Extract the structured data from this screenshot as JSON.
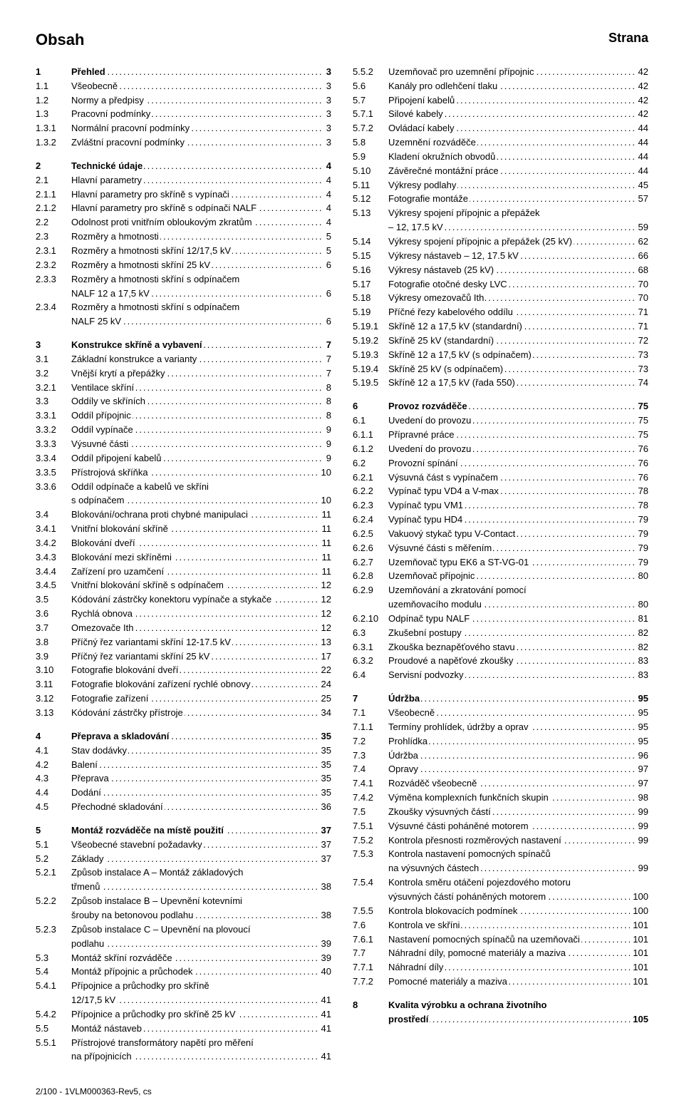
{
  "header": {
    "title": "Obsah",
    "page_label": "Strana"
  },
  "footer": "2/100 - 1VLM000363-Rev5, cs",
  "left": [
    {
      "n": "1",
      "t": "Přehled",
      "p": "3",
      "b": true
    },
    {
      "n": "1.1",
      "t": "Všeobecně",
      "p": "3"
    },
    {
      "n": "1.2",
      "t": "Normy a předpisy",
      "p": "3"
    },
    {
      "n": "1.3",
      "t": "Pracovní podmínky",
      "p": "3"
    },
    {
      "n": "1.3.1",
      "t": "Normální pracovní podmínky",
      "p": "3"
    },
    {
      "n": "1.3.2",
      "t": "Zvláštní pracovní podmínky",
      "p": "3"
    },
    {
      "gap": true
    },
    {
      "n": "2",
      "t": "Technické údaje",
      "p": "4",
      "b": true
    },
    {
      "n": "2.1",
      "t": "Hlavní parametry",
      "p": "4"
    },
    {
      "n": "2.1.1",
      "t": "Hlavní parametry pro skříně s vypínači",
      "p": "4"
    },
    {
      "n": "2.1.2",
      "t": "Hlavní parametry pro skříně s odpínači NALF",
      "p": "4"
    },
    {
      "n": "2.2",
      "t": "Odolnost proti vnitřním obloukovým zkratům",
      "p": "4"
    },
    {
      "n": "2.3",
      "t": "Rozměry a hmotnosti",
      "p": "5"
    },
    {
      "n": "2.3.1",
      "t": "Rozměry a hmotnosti skříní 12/17,5 kV",
      "p": "5"
    },
    {
      "n": "2.3.2",
      "t": "Rozměry a hmotnosti skříní 25 kV",
      "p": "6"
    },
    {
      "n": "2.3.3",
      "t": "Rozměry a hmotnosti skříní s odpínačem",
      "cont": "NALF 12 a 17,5 kV",
      "p": "6"
    },
    {
      "n": "2.3.4",
      "t": "Rozměry a hmotnosti skříní s odpínačem",
      "cont": "NALF 25 kV",
      "p": "6"
    },
    {
      "gap": true
    },
    {
      "n": "3",
      "t": "Konstrukce skříně a vybavení",
      "p": "7",
      "b": true
    },
    {
      "n": "3.1",
      "t": "Základní konstrukce a varianty",
      "p": "7"
    },
    {
      "n": "3.2",
      "t": "Vnější krytí a přepážky",
      "p": "7"
    },
    {
      "n": "3.2.1",
      "t": "Ventilace skříní",
      "p": "8"
    },
    {
      "n": "3.3",
      "t": "Oddíly ve skříních",
      "p": "8"
    },
    {
      "n": "3.3.1",
      "t": "Oddíl přípojnic",
      "p": "8"
    },
    {
      "n": "3.3.2",
      "t": "Oddíl vypínače",
      "p": "9"
    },
    {
      "n": "3.3.3",
      "t": "Výsuvné části",
      "p": "9"
    },
    {
      "n": "3.3.4",
      "t": "Oddíl připojení kabelů",
      "p": "9"
    },
    {
      "n": "3.3.5",
      "t": "Přístrojová skříňka",
      "p": "10"
    },
    {
      "n": "3.3.6",
      "t": "Oddíl odpínače a kabelů ve skříni",
      "cont": "s odpínačem",
      "p": "10"
    },
    {
      "n": "3.4",
      "t": "Blokování/ochrana proti chybné manipulaci",
      "p": "11"
    },
    {
      "n": "3.4.1",
      "t": "Vnitřní blokování skříně",
      "p": "11"
    },
    {
      "n": "3.4.2",
      "t": "Blokování dveří",
      "p": "11"
    },
    {
      "n": "3.4.3",
      "t": "Blokování mezi skříněmi",
      "p": "11"
    },
    {
      "n": "3.4.4",
      "t": "Zařízení pro uzamčení",
      "p": "11"
    },
    {
      "n": "3.4.5",
      "t": "Vnitřní blokování skříně s odpínačem",
      "p": "12"
    },
    {
      "n": "3.5",
      "t": "Kódování zástrčky konektoru vypínače a stykače",
      "p": "12"
    },
    {
      "n": "3.6",
      "t": "Rychlá obnova",
      "p": "12"
    },
    {
      "n": "3.7",
      "t": "Omezovače Ith",
      "p": "12"
    },
    {
      "n": "3.8",
      "t": "Příčný řez variantami skříní 12-17.5 kV",
      "p": "13"
    },
    {
      "n": "3.9",
      "t": "Příčný řez variantami skříní 25 kV",
      "p": "17"
    },
    {
      "n": "3.10",
      "t": "Fotografie blokování dveří",
      "p": "22"
    },
    {
      "n": "3.11",
      "t": "Fotografie blokování zařízení rychlé obnovy",
      "p": "24"
    },
    {
      "n": "3.12",
      "t": "Fotografie zařízení",
      "p": "25"
    },
    {
      "n": "3.13",
      "t": "Kódování zástrčky přístroje",
      "p": "34"
    },
    {
      "gap": true
    },
    {
      "n": "4",
      "t": "Přeprava a skladování",
      "p": "35",
      "b": true
    },
    {
      "n": "4.1",
      "t": "Stav dodávky",
      "p": "35"
    },
    {
      "n": "4.2",
      "t": "Balení",
      "p": "35"
    },
    {
      "n": "4.3",
      "t": "Přeprava",
      "p": "35"
    },
    {
      "n": "4.4",
      "t": "Dodání",
      "p": "35"
    },
    {
      "n": "4.5",
      "t": "Přechodné skladování",
      "p": "36"
    },
    {
      "gap": true
    },
    {
      "n": "5",
      "t": "Montáž rozváděče na místě použití",
      "p": "37",
      "b": true
    },
    {
      "n": "5.1",
      "t": "Všeobecné stavební požadavky",
      "p": "37"
    },
    {
      "n": "5.2",
      "t": "Základy",
      "p": "37"
    },
    {
      "n": "5.2.1",
      "t": "Způsob instalace A – Montáž základových",
      "cont": "třmenů",
      "p": "38"
    },
    {
      "n": "5.2.2",
      "t": "Způsob instalace B – Upevnění kotevními",
      "cont": "šrouby na betonovou podlahu",
      "p": "38"
    },
    {
      "n": "5.2.3",
      "t": "Způsob instalace C – Upevnění na plovoucí",
      "cont": "podlahu",
      "p": "39"
    },
    {
      "n": "5.3",
      "t": "Montáž skříní rozváděče",
      "p": "39"
    },
    {
      "n": "5.4",
      "t": "Montáž přípojnic a průchodek",
      "p": "40"
    },
    {
      "n": "5.4.1",
      "t": "Přípojnice a průchodky pro skříně",
      "cont": "12/17,5 kV",
      "p": "41"
    },
    {
      "n": "5.4.2",
      "t": "Přípojnice a průchodky pro skříně 25 kV",
      "p": "41"
    },
    {
      "n": "5.5",
      "t": "Montáž nástaveb",
      "p": "41"
    },
    {
      "n": "5.5.1",
      "t": "Přístrojové transformátory napětí pro měření",
      "cont": "na přípojnicích",
      "p": "41"
    }
  ],
  "right": [
    {
      "n": "5.5.2",
      "t": "Uzemňovač pro uzemnění přípojnic",
      "p": "42"
    },
    {
      "n": "5.6",
      "t": "Kanály pro odlehčení tlaku",
      "p": "42"
    },
    {
      "n": "5.7",
      "t": "Připojení kabelů",
      "p": "42"
    },
    {
      "n": "5.7.1",
      "t": "Silové kabely",
      "p": "42"
    },
    {
      "n": "5.7.2",
      "t": "Ovládací kabely",
      "p": "44"
    },
    {
      "n": "5.8",
      "t": "Uzemnění rozváděče",
      "p": "44"
    },
    {
      "n": "5.9",
      "t": "Kladení okružních obvodů",
      "p": "44"
    },
    {
      "n": "5.10",
      "t": "Závěrečné montážní práce",
      "p": "44"
    },
    {
      "n": "5.11",
      "t": "Výkresy podlahy",
      "p": "45"
    },
    {
      "n": "5.12",
      "t": "Fotografie montáže",
      "p": "57"
    },
    {
      "n": "5.13",
      "t": "Výkresy spojení přípojnic a přepážek",
      "cont": "– 12, 17.5 kV",
      "p": "59"
    },
    {
      "n": "5.14",
      "t": "Výkresy spojení přípojnic a přepážek (25 kV)",
      "p": "62"
    },
    {
      "n": "5.15",
      "t": "Výkresy nástaveb – 12, 17.5 kV",
      "p": "66"
    },
    {
      "n": "5.16",
      "t": "Výkresy nástaveb (25 kV)",
      "p": "68"
    },
    {
      "n": "5.17",
      "t": "Fotografie otočné desky LVC",
      "p": "70"
    },
    {
      "n": "5.18",
      "t": "Výkresy omezovačů Ith",
      "p": "70"
    },
    {
      "n": "5.19",
      "t": "Příčné řezy kabelového oddílu",
      "p": "71"
    },
    {
      "n": "5.19.1",
      "t": "Skříně 12 a 17,5 kV (standardní)",
      "p": "71"
    },
    {
      "n": "5.19.2",
      "t": "Skříně 25 kV (standardní)",
      "p": "72"
    },
    {
      "n": "5.19.3",
      "t": "Skříně 12 a 17,5 kV (s odpínačem)",
      "p": "73"
    },
    {
      "n": "5.19.4",
      "t": "Skříně 25 kV (s odpínačem)",
      "p": "73"
    },
    {
      "n": "5.19.5",
      "t": "Skříně 12 a 17,5 kV (řada 550)",
      "p": "74"
    },
    {
      "gap": true
    },
    {
      "n": "6",
      "t": "Provoz rozváděče",
      "p": "75",
      "b": true
    },
    {
      "n": "6.1",
      "t": "Uvedení do provozu",
      "p": "75"
    },
    {
      "n": "6.1.1",
      "t": "Přípravné práce",
      "p": "75"
    },
    {
      "n": "6.1.2",
      "t": "Uvedení do provozu",
      "p": "76"
    },
    {
      "n": "6.2",
      "t": "Provozní spínání",
      "p": "76"
    },
    {
      "n": "6.2.1",
      "t": "Výsuvná část s vypínačem",
      "p": "76"
    },
    {
      "n": "6.2.2",
      "t": "Vypínač typu VD4 a V-max",
      "p": "78"
    },
    {
      "n": "6.2.3",
      "t": "Vypínač typu VM1",
      "p": "78"
    },
    {
      "n": "6.2.4",
      "t": "Vypínač typu HD4",
      "p": "79"
    },
    {
      "n": "6.2.5",
      "t": "Vakuový stykač typu V-Contact",
      "p": "79"
    },
    {
      "n": "6.2.6",
      "t": "Výsuvné části s měřením",
      "p": "79"
    },
    {
      "n": "6.2.7",
      "t": "Uzemňovač typu EK6 a ST-VG-01",
      "p": "79"
    },
    {
      "n": "6.2.8",
      "t": "Uzemňovač přípojnic",
      "p": "80"
    },
    {
      "n": "6.2.9",
      "t": "Uzemňování a zkratování pomocí",
      "cont": "uzemňovacího modulu",
      "p": "80"
    },
    {
      "n": "6.2.10",
      "t": "Odpínač typu NALF",
      "p": "81"
    },
    {
      "n": "6.3",
      "t": "Zkušební postupy",
      "p": "82"
    },
    {
      "n": "6.3.1",
      "t": "Zkouška beznapěťového stavu",
      "p": "82"
    },
    {
      "n": "6.3.2",
      "t": "Proudové a napěťové zkoušky",
      "p": "83"
    },
    {
      "n": "6.4",
      "t": "Servisní podvozky",
      "p": "83"
    },
    {
      "gap": true
    },
    {
      "n": "7",
      "t": "Údržba",
      "p": "95",
      "b": true
    },
    {
      "n": "7.1",
      "t": "Všeobecně",
      "p": "95"
    },
    {
      "n": "7.1.1",
      "t": "Termíny prohlídek, údržby a oprav",
      "p": "95"
    },
    {
      "n": "7.2",
      "t": "Prohlídka",
      "p": "95"
    },
    {
      "n": "7.3",
      "t": "Údržba",
      "p": "96"
    },
    {
      "n": "7.4",
      "t": "Opravy",
      "p": "97"
    },
    {
      "n": "7.4.1",
      "t": "Rozváděč všeobecně",
      "p": "97"
    },
    {
      "n": "7.4.2",
      "t": "Výměna komplexních funkčních skupin",
      "p": "98"
    },
    {
      "n": "7.5",
      "t": "Zkoušky výsuvných částí",
      "p": "99"
    },
    {
      "n": "7.5.1",
      "t": "Výsuvné části poháněné motorem",
      "p": "99"
    },
    {
      "n": "7.5.2",
      "t": "Kontrola přesnosti rozměrových nastavení",
      "p": "99"
    },
    {
      "n": "7.5.3",
      "t": "Kontrola nastavení pomocných spínačů",
      "cont": "na výsuvných částech",
      "p": "99"
    },
    {
      "n": "7.5.4",
      "t": "Kontrola směru otáčení pojezdového motoru",
      "cont": "výsuvných částí poháněných motorem",
      "p": "100"
    },
    {
      "n": "7.5.5",
      "t": "Kontrola blokovacích podmínek",
      "p": "100"
    },
    {
      "n": "7.6",
      "t": "Kontrola ve skříni",
      "p": "101"
    },
    {
      "n": "7.6.1",
      "t": "Nastavení pomocných spínačů na uzemňovači",
      "p": "101"
    },
    {
      "n": "7.7",
      "t": "Náhradní díly, pomocné materiály a maziva",
      "p": "101"
    },
    {
      "n": "7.7.1",
      "t": "Náhradní díly",
      "p": "101"
    },
    {
      "n": "7.7.2",
      "t": "Pomocné materiály a maziva",
      "p": "101"
    },
    {
      "gap": true
    },
    {
      "n": "8",
      "t": "Kvalita výrobku a ochrana životního",
      "cont": "prostředí",
      "p": "105",
      "b": true
    }
  ]
}
